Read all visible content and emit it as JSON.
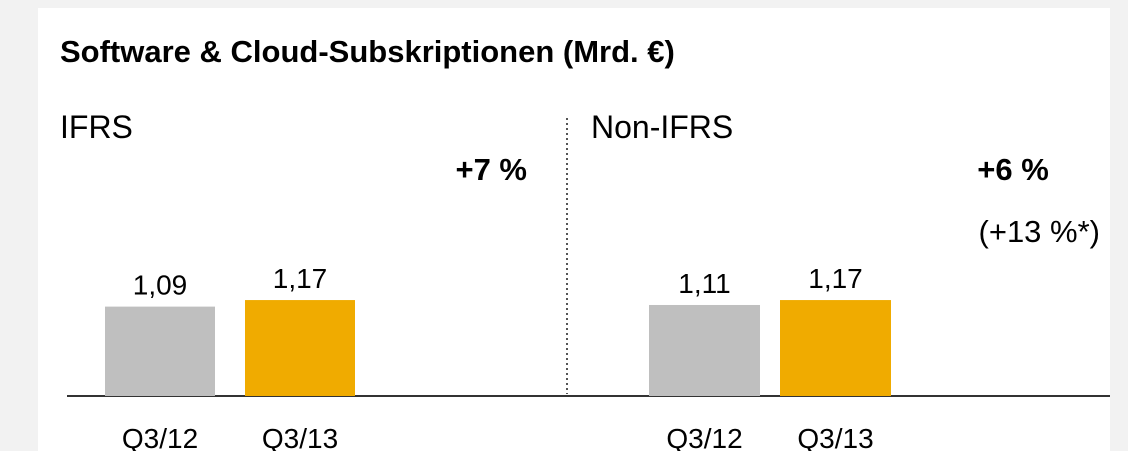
{
  "title": "Software & Cloud-Subskriptionen (Mrd. €)",
  "chart_data": [
    {
      "type": "bar",
      "subtitle": "IFRS",
      "annotations": [
        "+7 %"
      ],
      "categories": [
        "Q3/12",
        "Q3/13"
      ],
      "values": [
        1.09,
        1.17
      ],
      "value_labels": [
        "1,09",
        "1,17"
      ],
      "colors": [
        "#bfbfbf",
        "#f0ab00"
      ]
    },
    {
      "type": "bar",
      "subtitle": "Non-IFRS",
      "annotations": [
        "+6 %",
        "(+13 %*)"
      ],
      "categories": [
        "Q3/12",
        "Q3/13"
      ],
      "values": [
        1.11,
        1.17
      ],
      "value_labels": [
        "1,11",
        "1,17"
      ],
      "colors": [
        "#bfbfbf",
        "#f0ab00"
      ]
    }
  ]
}
